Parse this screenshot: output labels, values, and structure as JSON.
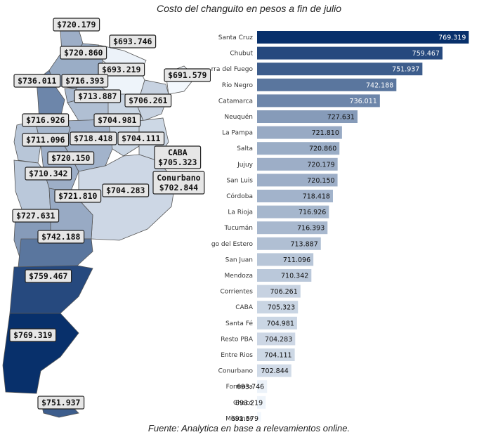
{
  "title": "Costo del changuito en pesos a fin de julio",
  "source": "Fuente: Analytica en base a relevamientos online.",
  "chart_data": {
    "type": "bar",
    "orientation": "horizontal",
    "title": "Costo del changuito en pesos a fin de julio",
    "categories": [
      "Santa Cruz",
      "Chubut",
      "Tierra del Fuego",
      "Rio Negro",
      "Catamarca",
      "Neuquén",
      "La Pampa",
      "Salta",
      "Jujuy",
      "San Luis",
      "Córdoba",
      "La Rioja",
      "Tucumán",
      "Santiago del Estero",
      "San Juan",
      "Mendoza",
      "Corrientes",
      "CABA",
      "Santa Fé",
      "Resto PBA",
      "Entre Rios",
      "Conurbano",
      "Formosa",
      "Chaco",
      "Misiones"
    ],
    "values": [
      769.319,
      759.467,
      751.937,
      742.188,
      736.011,
      727.631,
      721.81,
      720.86,
      720.179,
      720.15,
      718.418,
      716.926,
      716.393,
      713.887,
      711.096,
      710.342,
      706.261,
      705.323,
      704.981,
      704.283,
      704.111,
      702.844,
      693.746,
      693.219,
      691.579
    ],
    "value_labels": [
      "769.319",
      "759.467",
      "751.937",
      "742.188",
      "736.011",
      "727.631",
      "721.810",
      "720.860",
      "720.179",
      "720.150",
      "718.418",
      "716.926",
      "716.393",
      "713.887",
      "711.096",
      "710.342",
      "706.261",
      "705.323",
      "704.981",
      "704.283",
      "704.111",
      "702.844",
      "693.746",
      "693.219",
      "691.579"
    ],
    "colormap": "Blues",
    "color_low": "#f3f8fd",
    "color_high": "#08306b",
    "xlim": [
      690,
      770
    ]
  },
  "map": {
    "labels": [
      {
        "province": "Jujuy",
        "text": "$720.179"
      },
      {
        "province": "Formosa",
        "text": "$693.746"
      },
      {
        "province": "Salta",
        "text": "$720.860"
      },
      {
        "province": "Chaco",
        "text": "$693.219"
      },
      {
        "province": "Catamarca",
        "text": "$736.011"
      },
      {
        "province": "Tucumán",
        "text": "$716.393"
      },
      {
        "province": "Misiones",
        "text": "$691.579"
      },
      {
        "province": "Santiago del Estero",
        "text": "$713.887"
      },
      {
        "province": "Corrientes",
        "text": "$706.261"
      },
      {
        "province": "La Rioja",
        "text": "$716.926"
      },
      {
        "province": "Santa Fé",
        "text": "$704.981"
      },
      {
        "province": "San Juan",
        "text": "$711.096"
      },
      {
        "province": "Córdoba",
        "text": "$718.418"
      },
      {
        "province": "Entre Rios",
        "text": "$704.111"
      },
      {
        "province": "San Luis",
        "text": "$720.150"
      },
      {
        "province": "CABA",
        "text": "CABA\n$705.323"
      },
      {
        "province": "Mendoza",
        "text": "$710.342"
      },
      {
        "province": "Conurbano",
        "text": "Conurbano\n$702.844"
      },
      {
        "province": "Resto PBA",
        "text": "$704.283"
      },
      {
        "province": "La Pampa",
        "text": "$721.810"
      },
      {
        "province": "Neuquén",
        "text": "$727.631"
      },
      {
        "province": "Rio Negro",
        "text": "$742.188"
      },
      {
        "province": "Chubut",
        "text": "$759.467"
      },
      {
        "province": "Santa Cruz",
        "text": "$769.319"
      },
      {
        "province": "Tierra del Fuego",
        "text": "$751.937"
      }
    ]
  }
}
